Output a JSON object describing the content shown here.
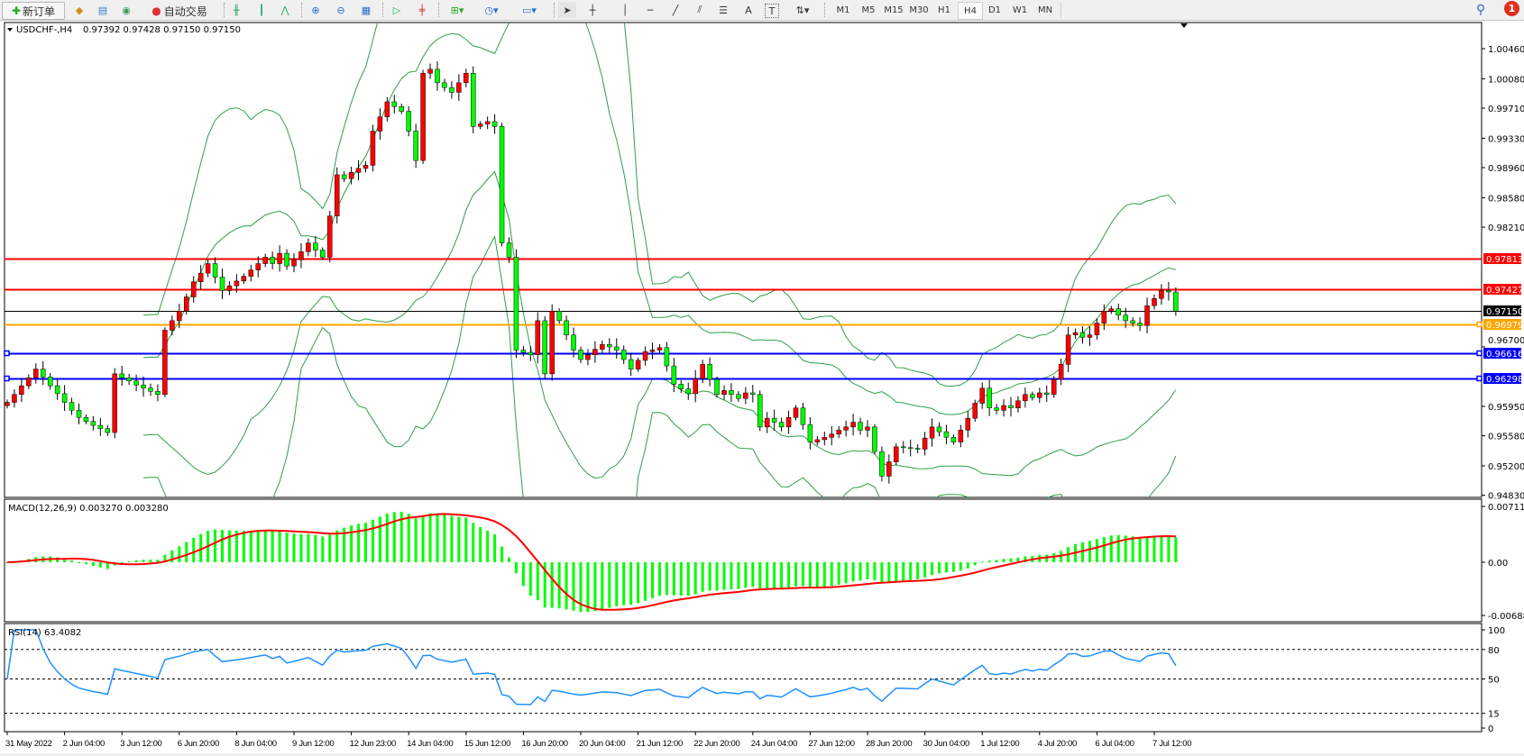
{
  "toolbar": {
    "new_order": "新订单",
    "auto_trading": "自动交易",
    "text_tool": "A",
    "label_tool": "T",
    "timeframes": [
      "M1",
      "M5",
      "M15",
      "M30",
      "H1",
      "H4",
      "D1",
      "W1",
      "MN"
    ],
    "active_timeframe": "H4",
    "notification_count": "1"
  },
  "colors": {
    "bull_candle": "#ff0000",
    "bear_candle": "#00ff00",
    "bands": "#2ea043",
    "macd_hist": "#00ff00",
    "macd_signal": "#ff0000",
    "rsi_line": "#1e90ff"
  },
  "chart": {
    "symbol": "USDCHF-,H4",
    "ohlc": "0.97392 0.97428 0.97150 0.97150",
    "price_ticks": [
      "1.00460",
      "1.00080",
      "0.99710",
      "0.99330",
      "0.98960",
      "0.98580",
      "0.98210",
      "0.96700",
      "0.95950",
      "0.95580",
      "0.95200",
      "0.94830"
    ],
    "hlines": [
      {
        "price": "0.97813",
        "color": "#ff0000",
        "type": "resistance"
      },
      {
        "price": "0.97427",
        "color": "#ff0000",
        "type": "resistance"
      },
      {
        "price": "0.97150",
        "color": "#000000",
        "type": "bid"
      },
      {
        "price": "0.96979",
        "color": "#ffa500",
        "type": "level"
      },
      {
        "price": "0.96616",
        "color": "#0000ff",
        "type": "support"
      },
      {
        "price": "0.96298",
        "color": "#0000ff",
        "type": "support"
      }
    ],
    "date_labels": [
      "31 May 2022",
      "2 Jun 04:00",
      "3 Jun 12:00",
      "6 Jun 20:00",
      "8 Jun 04:00",
      "9 Jun 12:00",
      "12 Jun 23:00",
      "14 Jun 04:00",
      "15 Jun 12:00",
      "16 Jun 20:00",
      "20 Jun 04:00",
      "21 Jun 12:00",
      "22 Jun 20:00",
      "24 Jun 04:00",
      "27 Jun 12:00",
      "28 Jun 20:00",
      "30 Jun 04:00",
      "1 Jul 12:00",
      "4 Jul 20:00",
      "6 Jul 04:00",
      "7 Jul 12:00"
    ]
  },
  "chart_data": {
    "type": "candlestick",
    "symbol": "USDCHF-",
    "timeframe": "H4",
    "last_bar": {
      "open": 0.97392,
      "high": 0.97428,
      "low": 0.9715,
      "close": 0.9715
    },
    "ylim": [
      0.9483,
      1.0046
    ],
    "close": [
      0.96,
      0.961,
      0.9621,
      0.9631,
      0.9642,
      0.9632,
      0.9621,
      0.9611,
      0.96,
      0.959,
      0.9581,
      0.9576,
      0.9571,
      0.9567,
      0.9562,
      0.9636,
      0.9631,
      0.9627,
      0.9622,
      0.9618,
      0.9614,
      0.961,
      0.9691,
      0.9703,
      0.9715,
      0.9733,
      0.9752,
      0.9763,
      0.9775,
      0.9758,
      0.9741,
      0.9747,
      0.9753,
      0.9759,
      0.9767,
      0.9775,
      0.9783,
      0.9775,
      0.9788,
      0.9772,
      0.978,
      0.979,
      0.9801,
      0.9792,
      0.9783,
      0.9835,
      0.9887,
      0.9882,
      0.989,
      0.9895,
      0.9899,
      0.9942,
      0.996,
      0.9979,
      0.9973,
      0.9967,
      0.9942,
      0.9905,
      1.0015,
      1.002,
      1.0003,
      0.9997,
      0.9991,
      1.0003,
      1.0015,
      0.9948,
      0.9951,
      0.9954,
      0.9948,
      0.9801,
      0.9783,
      0.9666,
      0.9663,
      0.966,
      0.9703,
      0.9636,
      0.9715,
      0.9703,
      0.9685,
      0.9666,
      0.9654,
      0.966,
      0.9667,
      0.9673,
      0.967,
      0.9666,
      0.9654,
      0.9642,
      0.9653,
      0.9664,
      0.9666,
      0.9669,
      0.9646,
      0.9623,
      0.9617,
      0.9611,
      0.963,
      0.9648,
      0.9629,
      0.961,
      0.9615,
      0.961,
      0.9605,
      0.9612,
      0.961,
      0.9569,
      0.958,
      0.9575,
      0.9569,
      0.9581,
      0.9593,
      0.9572,
      0.955,
      0.9553,
      0.9556,
      0.956,
      0.9565,
      0.9569,
      0.9575,
      0.9565,
      0.9569,
      0.9538,
      0.9507,
      0.9525,
      0.9544,
      0.9543,
      0.9542,
      0.9541,
      0.9555,
      0.9569,
      0.9563,
      0.9556,
      0.955,
      0.9565,
      0.958,
      0.9599,
      0.9618,
      0.9593,
      0.959,
      0.9596,
      0.9593,
      0.9602,
      0.961,
      0.9606,
      0.9612,
      0.961,
      0.9629,
      0.9648,
      0.9685,
      0.9688,
      0.9682,
      0.9685,
      0.97,
      0.9715,
      0.9718,
      0.971,
      0.9703,
      0.97,
      0.9697,
      0.9722,
      0.9731,
      0.9741,
      0.97392,
      0.9715
    ]
  },
  "macd": {
    "label": "MACD(12,26,9) 0.003270 0.003280",
    "ticks": [
      "0.00711",
      "0.00",
      "-0.006888"
    ]
  },
  "rsi": {
    "label": "RSI(14) 63.4082",
    "ticks": [
      "100",
      "80",
      "50",
      "15",
      "0"
    ],
    "levels": [
      80,
      50,
      15
    ]
  }
}
